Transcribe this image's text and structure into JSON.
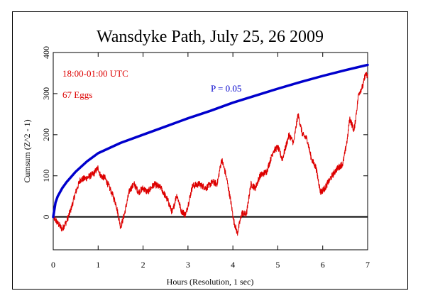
{
  "chart_data": {
    "type": "line",
    "title": "Wansdyke Path, July 25, 26 2009",
    "xlabel": "Hours (Resolution, 1 sec)",
    "ylabel": "Cumsum (Z^2 - 1)",
    "xlim": [
      0,
      7
    ],
    "ylim": [
      -80,
      400
    ],
    "x_ticks": [
      0,
      1,
      2,
      3,
      4,
      5,
      6,
      7
    ],
    "y_ticks": [
      0,
      100,
      200,
      300,
      400
    ],
    "grid": false,
    "zero_line": true,
    "annotations": [
      {
        "text": "18:00-01:00 UTC",
        "color": "#dd0000"
      },
      {
        "text": "67 Eggs",
        "color": "#dd0000"
      },
      {
        "text": "P = 0.05",
        "color": "#0000cc"
      }
    ],
    "series": [
      {
        "color": "#dd0000",
        "x": [
          0,
          0.1,
          0.2,
          0.3,
          0.4,
          0.5,
          0.6,
          0.75,
          0.9,
          1.0,
          1.05,
          1.15,
          1.3,
          1.4,
          1.5,
          1.58,
          1.7,
          1.8,
          1.9,
          2.0,
          2.1,
          2.25,
          2.4,
          2.55,
          2.65,
          2.75,
          2.85,
          2.95,
          3.1,
          3.25,
          3.4,
          3.55,
          3.65,
          3.75,
          3.85,
          3.95,
          4.02,
          4.1,
          4.2,
          4.3,
          4.4,
          4.5,
          4.6,
          4.75,
          4.9,
          5.0,
          5.1,
          5.25,
          5.35,
          5.45,
          5.55,
          5.65,
          5.75,
          5.85,
          5.95,
          6.05,
          6.15,
          6.3,
          6.45,
          6.55,
          6.6,
          6.7,
          6.8,
          6.9,
          6.95,
          7.0
        ],
        "y": [
          0,
          -15,
          -30,
          -10,
          20,
          60,
          90,
          95,
          105,
          120,
          100,
          95,
          60,
          30,
          -25,
          5,
          65,
          80,
          60,
          70,
          60,
          80,
          70,
          40,
          10,
          55,
          15,
          5,
          75,
          80,
          70,
          85,
          80,
          140,
          100,
          40,
          -10,
          -40,
          10,
          5,
          80,
          70,
          100,
          110,
          160,
          170,
          140,
          200,
          180,
          250,
          200,
          190,
          140,
          120,
          60,
          70,
          90,
          115,
          130,
          190,
          240,
          210,
          300,
          320,
          350,
          340
        ]
      },
      {
        "color": "#0000cc",
        "x": [
          0,
          0.05,
          0.1,
          0.2,
          0.3,
          0.5,
          0.75,
          1.0,
          1.5,
          2.0,
          2.5,
          3.0,
          3.5,
          4.0,
          4.5,
          5.0,
          5.5,
          6.0,
          6.5,
          7.0
        ],
        "y": [
          0,
          35,
          50,
          70,
          85,
          110,
          135,
          155,
          180,
          200,
          220,
          240,
          258,
          278,
          295,
          312,
          328,
          343,
          357,
          370
        ]
      }
    ]
  }
}
